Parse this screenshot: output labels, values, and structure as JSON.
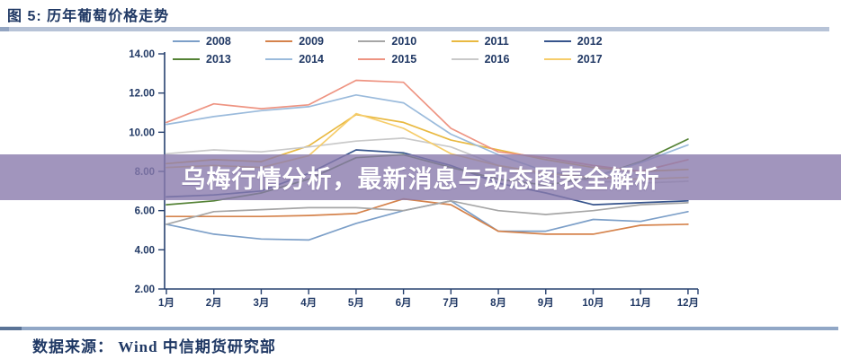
{
  "header": {
    "title": "图 5: 历年葡萄价格走势"
  },
  "overlay": {
    "text": "乌梅行情分析，最新消息与动态图表全解析",
    "background": "#9488BA",
    "text_color": "#FFFFFF"
  },
  "footer": {
    "source_label": "数据来源： Wind 中信期货研究部"
  },
  "colors": {
    "axis": "#26406E",
    "tick_label": "#203864",
    "title_text": "#1F3864",
    "rule_bar": "#B7C3D7",
    "footer_bar": "#91A7C6"
  },
  "chart_data": {
    "type": "line",
    "title": "历年葡萄价格走势",
    "xlabel": "",
    "ylabel": "",
    "ylim": [
      2,
      14
    ],
    "ytick_step": 2,
    "ytick_labels": [
      "2.00",
      "4.00",
      "6.00",
      "8.00",
      "10.00",
      "12.00",
      "14.00"
    ],
    "grid": false,
    "legend_position": "top",
    "categories": [
      "1月",
      "2月",
      "3月",
      "4月",
      "5月",
      "6月",
      "7月",
      "8月",
      "9月",
      "10月",
      "11月",
      "12月"
    ],
    "series": [
      {
        "name": "2008",
        "color": "#7C9FC8",
        "values": [
          5.3,
          4.8,
          4.55,
          4.5,
          5.35,
          6.0,
          6.5,
          4.95,
          4.95,
          5.55,
          5.45,
          5.95
        ]
      },
      {
        "name": "2009",
        "color": "#D5834C",
        "values": [
          5.7,
          5.7,
          5.7,
          5.75,
          5.85,
          6.6,
          6.3,
          4.95,
          4.8,
          4.8,
          5.25,
          5.3
        ]
      },
      {
        "name": "2010",
        "color": "#A6A6A6",
        "values": [
          5.3,
          5.95,
          6.05,
          6.15,
          6.15,
          6.0,
          6.5,
          6.0,
          5.8,
          6.0,
          6.3,
          6.4
        ]
      },
      {
        "name": "2011",
        "color": "#E9B941",
        "values": [
          8.4,
          8.6,
          8.5,
          9.3,
          10.9,
          10.5,
          9.6,
          9.1,
          8.6,
          8.2,
          8.0,
          8.1
        ]
      },
      {
        "name": "2012",
        "color": "#36548C",
        "values": [
          6.7,
          6.8,
          7.0,
          7.9,
          9.1,
          8.95,
          8.3,
          7.4,
          6.9,
          6.3,
          6.4,
          6.5
        ]
      },
      {
        "name": "2013",
        "color": "#548235",
        "values": [
          6.3,
          6.5,
          6.9,
          7.6,
          8.7,
          8.85,
          8.2,
          7.6,
          7.3,
          7.7,
          8.5,
          9.65
        ]
      },
      {
        "name": "2014",
        "color": "#9BBBDC",
        "values": [
          10.4,
          10.8,
          11.1,
          11.3,
          11.9,
          11.5,
          9.9,
          8.85,
          8.0,
          7.7,
          8.45,
          9.35
        ]
      },
      {
        "name": "2015",
        "color": "#EE9482",
        "values": [
          10.5,
          11.45,
          11.2,
          11.4,
          12.65,
          12.55,
          10.2,
          9.0,
          8.7,
          8.3,
          8.0,
          8.6
        ]
      },
      {
        "name": "2016",
        "color": "#C9C9C9",
        "values": [
          8.9,
          9.1,
          9.0,
          9.25,
          9.55,
          9.7,
          9.25,
          8.3,
          7.8,
          7.5,
          7.4,
          7.5
        ]
      },
      {
        "name": "2017",
        "color": "#F6CD6B",
        "values": [
          8.2,
          8.3,
          8.2,
          8.8,
          10.95,
          10.2,
          8.9,
          8.3,
          7.9,
          7.7,
          7.6,
          7.7
        ]
      }
    ]
  }
}
